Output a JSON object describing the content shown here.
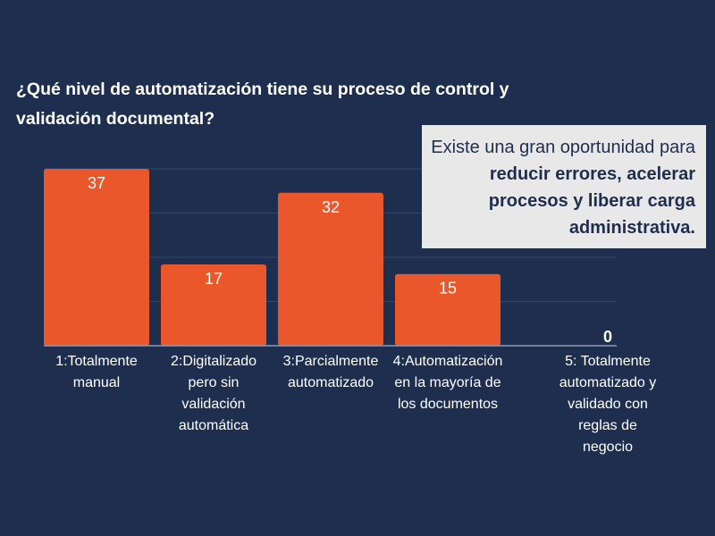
{
  "chart_data": {
    "type": "bar",
    "title": "¿Qué nivel de automatización tiene su proceso de control y\nvalidación documental?",
    "categories": [
      "1:Totalmente\nmanual",
      "2:Digitalizado\npero sin\nvalidación\nautomática",
      "3:Parcialmente\nautomatizado",
      "4:Automatización\nen la mayoría de\nlos documentos",
      "5: Totalmente\nautomatizado y\nvalidado con\nreglas de\nnegocio"
    ],
    "values": [
      37,
      17,
      32,
      15,
      0
    ],
    "ylim": [
      0,
      37
    ],
    "grid": true,
    "bar_color": "#e9572a",
    "background_color": "#1e2e4f"
  },
  "callout": {
    "lead": "Existe una gran oportunidad para ",
    "emphasis": "reducir errores, acelerar procesos y liberar carga administrativa."
  }
}
